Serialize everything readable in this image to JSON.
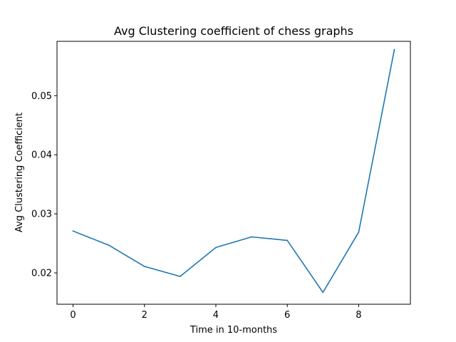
{
  "chart_data": {
    "type": "line",
    "title": "Avg Clustering coefficient of chess graphs",
    "xlabel": "Time in 10-months",
    "ylabel": "Avg Clustering Coefficient",
    "xlim": [
      -0.45,
      9.45
    ],
    "ylim": [
      0.0147,
      0.0592
    ],
    "xticks": [
      0,
      2,
      4,
      6,
      8
    ],
    "xtick_labels": [
      "0",
      "2",
      "4",
      "6",
      "8"
    ],
    "yticks": [
      0.02,
      0.03,
      0.04,
      0.05
    ],
    "ytick_labels": [
      "0.02",
      "0.03",
      "0.04",
      "0.05"
    ],
    "grid": false,
    "series": [
      {
        "color": "#1f77b4",
        "x": [
          0,
          1,
          2,
          3,
          4,
          5,
          6,
          7,
          8,
          9
        ],
        "y": [
          0.0271,
          0.0247,
          0.0211,
          0.0194,
          0.0243,
          0.0261,
          0.0255,
          0.0167,
          0.0269,
          0.0578
        ]
      }
    ]
  }
}
